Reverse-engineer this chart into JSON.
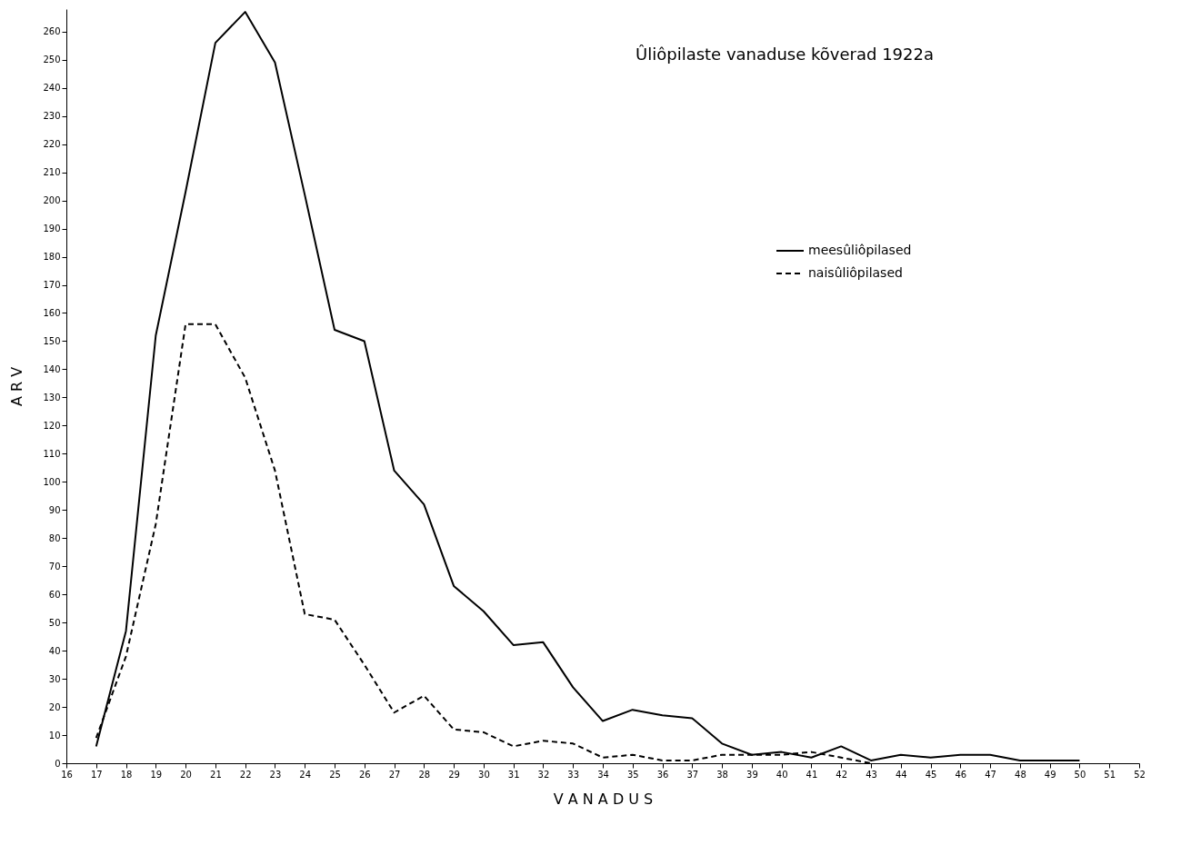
{
  "chart_data": {
    "type": "line",
    "title": "Ûliôpilaste vanaduse kõverad 1922a",
    "xlabel": "V A N A D U S",
    "ylabel": "A R V",
    "x": [
      17,
      18,
      19,
      20,
      21,
      22,
      23,
      24,
      25,
      26,
      27,
      28,
      29,
      30,
      31,
      32,
      33,
      34,
      35,
      36,
      37,
      38,
      39,
      40,
      41,
      42,
      43,
      44,
      45,
      46,
      47,
      48,
      49,
      50
    ],
    "series": [
      {
        "name": "meesûliôpilased",
        "color": "#000000",
        "line_style": "solid",
        "values": [
          6,
          47,
          152,
          203,
          256,
          267,
          249,
          202,
          154,
          150,
          104,
          92,
          63,
          54,
          42,
          43,
          27,
          15,
          19,
          17,
          16,
          7,
          3,
          4,
          2,
          6,
          1,
          3,
          2,
          3,
          3,
          1,
          1,
          1
        ]
      },
      {
        "name": "naisûliôpilased",
        "color": "#000000",
        "line_style": "dashed",
        "values": [
          9,
          38,
          85,
          156,
          156,
          137,
          104,
          53,
          51,
          35,
          18,
          24,
          12,
          11,
          6,
          8,
          7,
          2,
          3,
          1,
          1,
          3,
          3,
          3,
          4,
          2,
          0,
          null,
          null,
          null,
          null,
          null,
          null,
          null
        ]
      }
    ],
    "xlim": [
      16,
      52
    ],
    "xticks": [
      16,
      17,
      18,
      19,
      20,
      21,
      22,
      23,
      24,
      25,
      26,
      27,
      28,
      29,
      30,
      31,
      32,
      33,
      34,
      35,
      36,
      37,
      38,
      39,
      40,
      41,
      42,
      43,
      44,
      45,
      46,
      47,
      48,
      49,
      50,
      51,
      52
    ],
    "ylim": [
      0,
      268
    ],
    "yticks": [
      0,
      10,
      20,
      30,
      40,
      50,
      60,
      70,
      80,
      90,
      100,
      110,
      120,
      130,
      140,
      150,
      160,
      170,
      180,
      190,
      200,
      210,
      220,
      230,
      240,
      250,
      260
    ],
    "legend": "top right",
    "grid": false
  }
}
